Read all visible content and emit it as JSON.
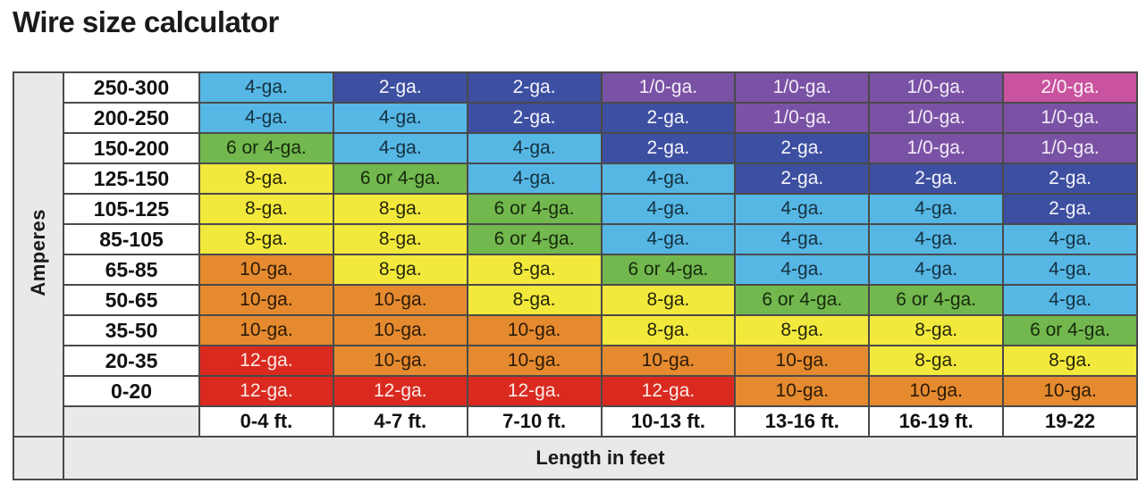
{
  "title": "Wire size calculator",
  "chart_data": {
    "type": "table",
    "title": "Wire size calculator",
    "ylabel": "Amperes",
    "xlabel": "Length in feet",
    "columns": [
      "0-4 ft.",
      "4-7 ft.",
      "7-10 ft.",
      "10-13 ft.",
      "13-16 ft.",
      "16-19 ft.",
      "19-22"
    ],
    "rows": [
      {
        "amperes": "250-300",
        "cells": [
          {
            "gauge": "4-ga.",
            "color": "lightblue"
          },
          {
            "gauge": "2-ga.",
            "color": "darkblue"
          },
          {
            "gauge": "2-ga.",
            "color": "darkblue"
          },
          {
            "gauge": "1/0-ga.",
            "color": "purple"
          },
          {
            "gauge": "1/0-ga.",
            "color": "purple"
          },
          {
            "gauge": "1/0-ga.",
            "color": "purple"
          },
          {
            "gauge": "2/0-ga.",
            "color": "pink"
          }
        ]
      },
      {
        "amperes": "200-250",
        "cells": [
          {
            "gauge": "4-ga.",
            "color": "lightblue"
          },
          {
            "gauge": "4-ga.",
            "color": "lightblue"
          },
          {
            "gauge": "2-ga.",
            "color": "darkblue"
          },
          {
            "gauge": "2-ga.",
            "color": "darkblue"
          },
          {
            "gauge": "1/0-ga.",
            "color": "purple"
          },
          {
            "gauge": "1/0-ga.",
            "color": "purple"
          },
          {
            "gauge": "1/0-ga.",
            "color": "purple"
          }
        ]
      },
      {
        "amperes": "150-200",
        "cells": [
          {
            "gauge": "6 or 4-ga.",
            "color": "green"
          },
          {
            "gauge": "4-ga.",
            "color": "lightblue"
          },
          {
            "gauge": "4-ga.",
            "color": "lightblue"
          },
          {
            "gauge": "2-ga.",
            "color": "darkblue"
          },
          {
            "gauge": "2-ga.",
            "color": "darkblue"
          },
          {
            "gauge": "1/0-ga.",
            "color": "purple"
          },
          {
            "gauge": "1/0-ga.",
            "color": "purple"
          }
        ]
      },
      {
        "amperes": "125-150",
        "cells": [
          {
            "gauge": "8-ga.",
            "color": "yellow"
          },
          {
            "gauge": "6 or 4-ga.",
            "color": "green"
          },
          {
            "gauge": "4-ga.",
            "color": "lightblue"
          },
          {
            "gauge": "4-ga.",
            "color": "lightblue"
          },
          {
            "gauge": "2-ga.",
            "color": "darkblue"
          },
          {
            "gauge": "2-ga.",
            "color": "darkblue"
          },
          {
            "gauge": "2-ga.",
            "color": "darkblue"
          }
        ]
      },
      {
        "amperes": "105-125",
        "cells": [
          {
            "gauge": "8-ga.",
            "color": "yellow"
          },
          {
            "gauge": "8-ga.",
            "color": "yellow"
          },
          {
            "gauge": "6 or 4-ga.",
            "color": "green"
          },
          {
            "gauge": "4-ga.",
            "color": "lightblue"
          },
          {
            "gauge": "4-ga.",
            "color": "lightblue"
          },
          {
            "gauge": "4-ga.",
            "color": "lightblue"
          },
          {
            "gauge": "2-ga.",
            "color": "darkblue"
          }
        ]
      },
      {
        "amperes": "85-105",
        "cells": [
          {
            "gauge": "8-ga.",
            "color": "yellow"
          },
          {
            "gauge": "8-ga.",
            "color": "yellow"
          },
          {
            "gauge": "6 or 4-ga.",
            "color": "green"
          },
          {
            "gauge": "4-ga.",
            "color": "lightblue"
          },
          {
            "gauge": "4-ga.",
            "color": "lightblue"
          },
          {
            "gauge": "4-ga.",
            "color": "lightblue"
          },
          {
            "gauge": "4-ga.",
            "color": "lightblue"
          }
        ]
      },
      {
        "amperes": "65-85",
        "cells": [
          {
            "gauge": "10-ga.",
            "color": "orange"
          },
          {
            "gauge": "8-ga.",
            "color": "yellow"
          },
          {
            "gauge": "8-ga.",
            "color": "yellow"
          },
          {
            "gauge": "6 or 4-ga.",
            "color": "green"
          },
          {
            "gauge": "4-ga.",
            "color": "lightblue"
          },
          {
            "gauge": "4-ga.",
            "color": "lightblue"
          },
          {
            "gauge": "4-ga.",
            "color": "lightblue"
          }
        ]
      },
      {
        "amperes": "50-65",
        "cells": [
          {
            "gauge": "10-ga.",
            "color": "orange"
          },
          {
            "gauge": "10-ga.",
            "color": "orange"
          },
          {
            "gauge": "8-ga.",
            "color": "yellow"
          },
          {
            "gauge": "8-ga.",
            "color": "yellow"
          },
          {
            "gauge": "6 or 4-ga.",
            "color": "green"
          },
          {
            "gauge": "6 or 4-ga.",
            "color": "green"
          },
          {
            "gauge": "4-ga.",
            "color": "lightblue"
          }
        ]
      },
      {
        "amperes": "35-50",
        "cells": [
          {
            "gauge": "10-ga.",
            "color": "orange"
          },
          {
            "gauge": "10-ga.",
            "color": "orange"
          },
          {
            "gauge": "10-ga.",
            "color": "orange"
          },
          {
            "gauge": "8-ga.",
            "color": "yellow"
          },
          {
            "gauge": "8-ga.",
            "color": "yellow"
          },
          {
            "gauge": "8-ga.",
            "color": "yellow"
          },
          {
            "gauge": "6 or 4-ga.",
            "color": "green"
          }
        ]
      },
      {
        "amperes": "20-35",
        "cells": [
          {
            "gauge": "12-ga.",
            "color": "red"
          },
          {
            "gauge": "10-ga.",
            "color": "orange"
          },
          {
            "gauge": "10-ga.",
            "color": "orange"
          },
          {
            "gauge": "10-ga.",
            "color": "orange"
          },
          {
            "gauge": "10-ga.",
            "color": "orange"
          },
          {
            "gauge": "8-ga.",
            "color": "yellow"
          },
          {
            "gauge": "8-ga.",
            "color": "yellow"
          }
        ]
      },
      {
        "amperes": "0-20",
        "cells": [
          {
            "gauge": "12-ga.",
            "color": "red"
          },
          {
            "gauge": "12-ga.",
            "color": "red"
          },
          {
            "gauge": "12-ga.",
            "color": "red"
          },
          {
            "gauge": "12-ga.",
            "color": "red"
          },
          {
            "gauge": "10-ga.",
            "color": "orange"
          },
          {
            "gauge": "10-ga.",
            "color": "orange"
          },
          {
            "gauge": "10-ga.",
            "color": "orange"
          }
        ]
      }
    ],
    "palette": {
      "lightblue": "#56b7e5",
      "darkblue": "#3d4fa1",
      "purple": "#7a52a5",
      "pink": "#c9539f",
      "green": "#72b84e",
      "yellow": "#f2e93c",
      "orange": "#e58a2f",
      "red": "#da2a20",
      "header_gray": "#e9e9e7"
    },
    "legend_position": "none",
    "grid": true
  }
}
